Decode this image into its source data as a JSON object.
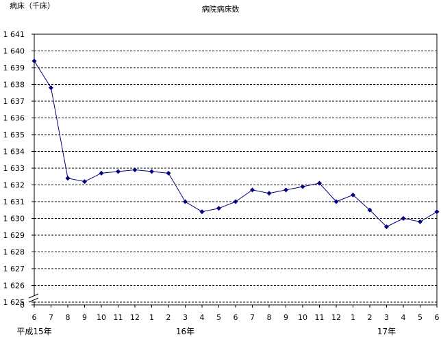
{
  "chart_data": {
    "type": "line",
    "title": "病院病床数",
    "ylabel": "病床（千床）",
    "xlabel": "",
    "ylim": [
      1625,
      1641
    ],
    "y_ticks": [
      "1 641",
      "1 640",
      "1 639",
      "1 638",
      "1 637",
      "1 636",
      "1 635",
      "1 634",
      "1 633",
      "1 632",
      "1 631",
      "1 630",
      "1 629",
      "1 628",
      "1 627",
      "1 626",
      "1 625",
      "0"
    ],
    "y_axis_break": true,
    "grid": "horizontal dashed",
    "categories": [
      "6",
      "7",
      "8",
      "9",
      "10",
      "11",
      "12",
      "1",
      "2",
      "3",
      "4",
      "5",
      "6",
      "7",
      "8",
      "9",
      "10",
      "11",
      "12",
      "1",
      "2",
      "3",
      "4",
      "5",
      "6"
    ],
    "year_labels": [
      {
        "text": "平成15年",
        "index": 0
      },
      {
        "text": "16年",
        "index": 9
      },
      {
        "text": "17年",
        "index": 21
      }
    ],
    "series": [
      {
        "color": "#000080",
        "values": [
          1639.4,
          1637.8,
          1632.4,
          1632.2,
          1632.7,
          1632.8,
          1632.9,
          1632.8,
          1632.7,
          1631.0,
          1630.4,
          1630.6,
          1631.0,
          1631.7,
          1631.5,
          1631.7,
          1631.9,
          1632.1,
          1631.0,
          1631.4,
          1630.5,
          1629.5,
          1630.0,
          1629.8,
          1630.4
        ]
      }
    ]
  }
}
